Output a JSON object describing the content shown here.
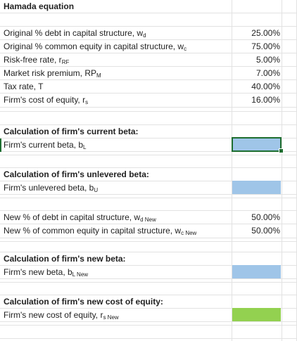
{
  "title": "Hamada equation",
  "inputs": [
    {
      "label": "Original % debt in capital structure, w",
      "sub": "d",
      "value": "25.00%"
    },
    {
      "label": "Original % common equity in capital structure, w",
      "sub": "c",
      "value": "75.00%"
    },
    {
      "label": "Risk-free rate, r",
      "sub": "RF",
      "value": "5.00%"
    },
    {
      "label": "Market risk premium, RP",
      "sub": "M",
      "value": "7.00%"
    },
    {
      "label": "Tax rate, T",
      "sub": "",
      "value": "40.00%"
    },
    {
      "label": "Firm's cost of equity, r",
      "sub": "s",
      "value": "16.00%"
    }
  ],
  "current_beta": {
    "heading": "Calculation of firm's current beta:",
    "label": "Firm's current beta, b",
    "sub": "L"
  },
  "unlevered_beta": {
    "heading": "Calculation of firm's unlevered beta:",
    "label": "Firm's unlevered beta, b",
    "sub": "U"
  },
  "new_structure": [
    {
      "label": "New % of debt in capital structure, w",
      "sub": "d New",
      "value": "50.00%"
    },
    {
      "label": "New % of common equity in capital structure, w",
      "sub": "c New",
      "value": "50.00%"
    }
  ],
  "new_beta": {
    "heading": "Calculation of firm's new beta:",
    "label": "Firm's new beta, b",
    "sub": "L New"
  },
  "new_cost": {
    "heading": "Calculation of firm's new cost of equity:",
    "label": "Firm's new cost of equity, r",
    "sub": "s New"
  },
  "colors": {
    "input_fill": "#9fc5e8",
    "result_fill": "#93d150",
    "selection": "#1e6e30",
    "gridline": "#e2e2e2"
  }
}
